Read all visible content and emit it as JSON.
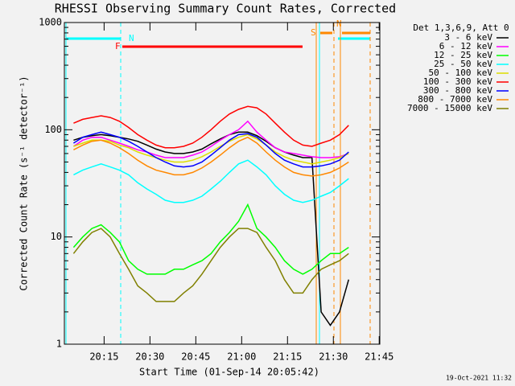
{
  "chart_data": {
    "type": "line",
    "title": "RHESSI Observing Summary Count Rates, Corrected",
    "x_label": "Start Time (01-Sep-14 20:05:42)",
    "y_label": "Corrected Count Rate (s⁻¹ detector⁻¹)",
    "legend_title": "Det 1,3,6,9, Att 0",
    "footer": "19-Oct-2021 11:32",
    "log_y": true,
    "flags": [
      "N",
      "F",
      "S",
      "N"
    ],
    "xlim": [
      2,
      105.2
    ],
    "xticks": [
      {
        "value": 15,
        "label": "20:15"
      },
      {
        "value": 30,
        "label": "20:30"
      },
      {
        "value": 45,
        "label": "20:45"
      },
      {
        "value": 60,
        "label": "21:00"
      },
      {
        "value": 75,
        "label": "21:15"
      },
      {
        "value": 90,
        "label": "21:30"
      },
      {
        "value": 105,
        "label": "21:45"
      }
    ],
    "ylim": [
      1,
      1000
    ],
    "yticks": [
      1,
      10,
      100,
      1000
    ],
    "x": [
      5,
      8,
      11,
      14,
      17,
      20,
      23,
      26,
      29,
      32,
      35,
      38,
      41,
      44,
      47,
      50,
      53,
      56,
      59,
      62,
      65,
      68,
      71,
      74,
      77,
      80,
      83,
      86,
      89,
      92,
      95
    ],
    "series": [
      {
        "name": "3 - 6 keV",
        "color": "#000000",
        "values": [
          80,
          85,
          88,
          90,
          88,
          85,
          82,
          78,
          72,
          66,
          62,
          60,
          60,
          62,
          66,
          74,
          82,
          90,
          95,
          95,
          88,
          78,
          68,
          62,
          58,
          55,
          55,
          2,
          1.5,
          2,
          4
        ]
      },
      {
        "name": "6 - 12 keV",
        "color": "#ff00ff",
        "values": [
          70,
          80,
          85,
          85,
          80,
          75,
          70,
          65,
          62,
          58,
          55,
          55,
          55,
          58,
          62,
          70,
          80,
          90,
          100,
          120,
          95,
          80,
          68,
          62,
          60,
          58,
          56,
          55,
          55,
          56,
          60
        ]
      },
      {
        "name": "12 - 25 keV",
        "color": "#00ff00",
        "values": [
          8,
          10,
          12,
          13,
          11,
          9,
          6,
          5,
          4.5,
          4.5,
          4.5,
          5,
          5,
          5.5,
          6,
          7,
          9,
          11,
          14,
          20,
          12,
          10,
          8,
          6,
          5,
          4.5,
          5,
          6,
          7,
          7,
          8
        ]
      },
      {
        "name": "25 - 50 keV",
        "color": "#00ffff",
        "values": [
          38,
          42,
          45,
          48,
          45,
          42,
          38,
          32,
          28,
          25,
          22,
          21,
          21,
          22,
          24,
          28,
          33,
          40,
          48,
          52,
          45,
          38,
          30,
          25,
          22,
          21,
          22,
          24,
          26,
          30,
          35
        ]
      },
      {
        "name": "50 - 100 keV",
        "color": "#dddd00",
        "values": [
          70,
          75,
          80,
          80,
          78,
          72,
          68,
          62,
          58,
          55,
          52,
          50,
          50,
          52,
          56,
          62,
          70,
          78,
          85,
          90,
          82,
          72,
          62,
          56,
          52,
          50,
          48,
          50,
          52,
          55,
          60
        ]
      },
      {
        "name": "100 - 300 keV",
        "color": "#ff0000",
        "values": [
          115,
          125,
          130,
          135,
          130,
          120,
          105,
          90,
          80,
          72,
          68,
          68,
          70,
          75,
          85,
          100,
          120,
          140,
          155,
          165,
          160,
          140,
          115,
          95,
          80,
          72,
          70,
          75,
          80,
          90,
          110
        ]
      },
      {
        "name": "300 - 800 keV",
        "color": "#0000ff",
        "values": [
          75,
          85,
          90,
          95,
          90,
          85,
          78,
          70,
          62,
          55,
          50,
          46,
          45,
          46,
          50,
          58,
          68,
          80,
          90,
          92,
          85,
          72,
          60,
          52,
          48,
          45,
          45,
          46,
          48,
          52,
          62
        ]
      },
      {
        "name": "800 - 7000 keV",
        "color": "#ff8800",
        "values": [
          65,
          72,
          78,
          80,
          75,
          68,
          60,
          52,
          46,
          42,
          40,
          38,
          38,
          40,
          44,
          50,
          58,
          68,
          78,
          85,
          75,
          62,
          52,
          45,
          40,
          38,
          37,
          38,
          40,
          44,
          50
        ]
      },
      {
        "name": "7000 - 15000 keV",
        "color": "#808000",
        "values": [
          7,
          9,
          11,
          12,
          10,
          7,
          5,
          3.5,
          3,
          2.5,
          2.5,
          2.5,
          3,
          3.5,
          4.5,
          6,
          8,
          10,
          12,
          12,
          11,
          8,
          6,
          4,
          3,
          3,
          4,
          5,
          5.5,
          6,
          7
        ]
      }
    ]
  }
}
